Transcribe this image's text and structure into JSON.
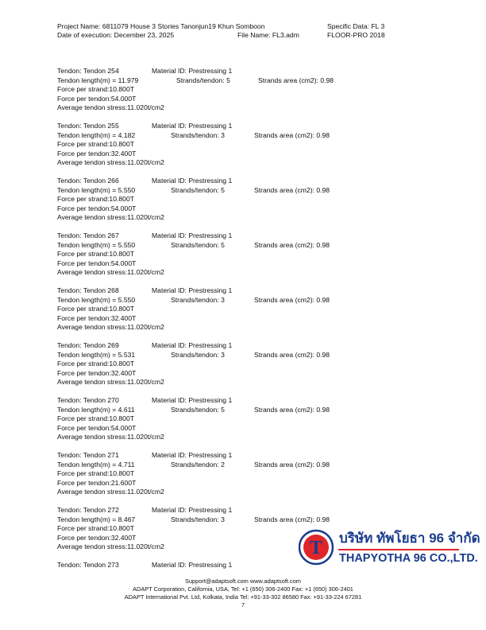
{
  "header": {
    "project_name": "Project Name: 6811079 House 3 Stories Tanonjun19 Khun Somboon",
    "specific_data": "Specific Data: FL 3",
    "date_of_execution": "Date of execution: December 23, 2025",
    "file_name": "File Name: FL3.adm",
    "program": "FLOOR-PRO 2018"
  },
  "tendons": [
    {
      "tendon": "Tendon: Tendon 254",
      "material": "Material ID: Prestressing 1",
      "length": "Tendon length(m) = 11.979",
      "strands": "Strands/tendon: 5",
      "area": "Strands area (cm2): 0.98",
      "force_strand": "Force per strand:10.800T",
      "force_tendon": "Force per tendon:54.000T",
      "stress": "Average tendon stress:11.020t/cm2"
    },
    {
      "tendon": "Tendon: Tendon 255",
      "material": "Material ID: Prestressing 1",
      "length": "Tendon length(m) = 4.182",
      "strands": "Strands/tendon: 3",
      "area": "Strands area (cm2): 0.98",
      "force_strand": "Force per strand:10.800T",
      "force_tendon": "Force per tendon:32.400T",
      "stress": "Average tendon stress:11.020t/cm2"
    },
    {
      "tendon": "Tendon: Tendon 266",
      "material": "Material ID: Prestressing 1",
      "length": "Tendon length(m) = 5.550",
      "strands": "Strands/tendon: 5",
      "area": "Strands area (cm2): 0.98",
      "force_strand": "Force per strand:10.800T",
      "force_tendon": "Force per tendon:54.000T",
      "stress": "Average tendon stress:11.020t/cm2"
    },
    {
      "tendon": "Tendon: Tendon 267",
      "material": "Material ID: Prestressing 1",
      "length": "Tendon length(m) = 5.550",
      "strands": "Strands/tendon: 5",
      "area": "Strands area (cm2): 0.98",
      "force_strand": "Force per strand:10.800T",
      "force_tendon": "Force per tendon:54.000T",
      "stress": "Average tendon stress:11.020t/cm2"
    },
    {
      "tendon": "Tendon: Tendon 268",
      "material": "Material ID: Prestressing 1",
      "length": "Tendon length(m) = 5.550",
      "strands": "Strands/tendon: 3",
      "area": "Strands area (cm2): 0.98",
      "force_strand": "Force per strand:10.800T",
      "force_tendon": "Force per tendon:32.400T",
      "stress": "Average tendon stress:11.020t/cm2"
    },
    {
      "tendon": "Tendon: Tendon 269",
      "material": "Material ID: Prestressing 1",
      "length": "Tendon length(m) = 5.531",
      "strands": "Strands/tendon: 3",
      "area": "Strands area (cm2): 0.98",
      "force_strand": "Force per strand:10.800T",
      "force_tendon": "Force per tendon:32.400T",
      "stress": "Average tendon stress:11.020t/cm2"
    },
    {
      "tendon": "Tendon: Tendon 270",
      "material": "Material ID: Prestressing 1",
      "length": "Tendon length(m) = 4.611",
      "strands": "Strands/tendon: 5",
      "area": "Strands area (cm2): 0.98",
      "force_strand": "Force per strand:10.800T",
      "force_tendon": "Force per tendon:54.000T",
      "stress": "Average tendon stress:11.020t/cm2"
    },
    {
      "tendon": "Tendon: Tendon 271",
      "material": "Material ID: Prestressing 1",
      "length": "Tendon length(m) = 4.711",
      "strands": "Strands/tendon: 2",
      "area": "Strands area (cm2): 0.98",
      "force_strand": "Force per strand:10.800T",
      "force_tendon": "Force per tendon:21.600T",
      "stress": "Average tendon stress:11.020t/cm2"
    },
    {
      "tendon": "Tendon: Tendon 272",
      "material": "Material ID: Prestressing 1",
      "length": "Tendon length(m) = 8.467",
      "strands": "Strands/tendon: 3",
      "area": "Strands area (cm2): 0.98",
      "force_strand": "Force per strand:10.800T",
      "force_tendon": "Force per tendon:32.400T",
      "stress": "Average tendon stress:11.020t/cm2"
    },
    {
      "tendon": "Tendon: Tendon 273",
      "material": "Material ID: Prestressing 1"
    }
  ],
  "logo": {
    "thai_name": "บริษัท ทัพโยธา 96 จำกัด",
    "english_name": "THAPYOTHA 96 CO.,LTD.",
    "letter": "T",
    "colors": {
      "red": "#e0262b",
      "blue": "#1a3c8c"
    }
  },
  "footer": {
    "line1": "Support@adaptsoft.com      www.adaptsoft.com",
    "line2": "ADAPT Corporation, California, USA,    Tel: +1 (650) 306-2400     Fax: +1 (650) 306-2401",
    "line3": "ADAPT International Pvt. Ltd, Kolkata, India Tel: +91-33-302 86580     Fax: +91-33-224 67281",
    "page_number": "7"
  }
}
